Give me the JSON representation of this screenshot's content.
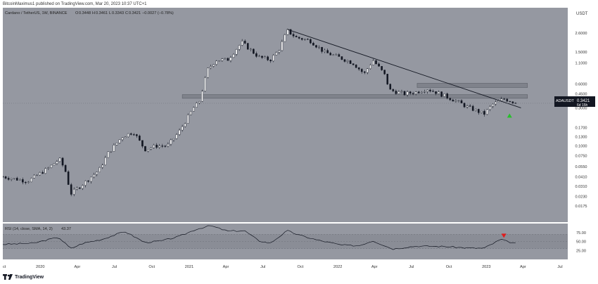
{
  "header": {
    "publisher": "BitcoinMaximus1 published on TradingView.com, Mar 20, 2023 10:37 UTC+1"
  },
  "legend": {
    "title": "Cardano / TetherUS, 1W, BINANCE",
    "o_label": "O",
    "o_value": "0.3448",
    "h_label": "H",
    "h_value": "0.3461",
    "l_label": "L",
    "l_value": "0.3343",
    "c_label": "C",
    "c_value": "0.3421",
    "change": "−0.0027 (−0.78%)"
  },
  "price_badge": {
    "symbol": "ADAUSDT",
    "price": "0.3421",
    "countdown": "6d 15h"
  },
  "rsi_legend": {
    "text": "RSI (14, close, SMA, 14, 2)",
    "value": "43.37"
  },
  "footer": {
    "brand": "TradingView"
  },
  "colors": {
    "plot_bg": "#9598a1",
    "candle_up": "#ffffff",
    "candle_down": "#131722",
    "trendline": "#131722",
    "zone_fill": "#7f828b",
    "up_arrow": "#26c02a",
    "down_arrow": "#e01c1c"
  },
  "chart_data": {
    "type": "candlestick",
    "symbol": "ADAUSDT",
    "timeframe": "1W",
    "yscale": "log",
    "ylabel": "USDT",
    "ylim": [
      0.011,
      4.0
    ],
    "yticks": [
      2.6,
      1.5,
      1.1,
      0.6,
      0.45,
      0.3,
      0.17,
      0.13,
      0.1,
      0.075,
      0.055,
      0.041,
      0.031,
      0.023,
      0.0175
    ],
    "ytick_labels": [
      "2.6000",
      "1.5000",
      "1.1000",
      "0.6000",
      "0.4500",
      "0.3000",
      "0.1700",
      "0.1300",
      "0.1000",
      "0.0750",
      "0.0550",
      "0.0410",
      "0.0310",
      "0.0230",
      "0.0175"
    ],
    "x_start": "2019-10-01",
    "x_end": "2023-07-20",
    "xticks": [
      "2019-10-01",
      "2020-01-01",
      "2020-04-01",
      "2020-07-01",
      "2020-10-01",
      "2021-01-01",
      "2021-04-01",
      "2021-07-01",
      "2021-10-01",
      "2022-01-01",
      "2022-04-01",
      "2022-07-01",
      "2022-10-01",
      "2023-01-01",
      "2023-04-01",
      "2023-07-01"
    ],
    "xtick_labels": [
      "Oct",
      "2020",
      "Apr",
      "Jul",
      "Oct",
      "2021",
      "Apr",
      "Jul",
      "Oct",
      "2022",
      "Apr",
      "Jul",
      "Oct",
      "2023",
      "Apr",
      "Jul"
    ],
    "price_anchors": [
      [
        "2019-10-01",
        0.041
      ],
      [
        "2019-12-01",
        0.036
      ],
      [
        "2020-01-20",
        0.052
      ],
      [
        "2020-02-17",
        0.068
      ],
      [
        "2020-03-02",
        0.05
      ],
      [
        "2020-03-16",
        0.025
      ],
      [
        "2020-04-20",
        0.035
      ],
      [
        "2020-05-25",
        0.05
      ],
      [
        "2020-06-15",
        0.08
      ],
      [
        "2020-07-20",
        0.13
      ],
      [
        "2020-08-17",
        0.15
      ],
      [
        "2020-09-14",
        0.09
      ],
      [
        "2020-10-12",
        0.1
      ],
      [
        "2020-11-09",
        0.1
      ],
      [
        "2020-12-07",
        0.15
      ],
      [
        "2021-01-11",
        0.3
      ],
      [
        "2021-01-25",
        0.35
      ],
      [
        "2021-02-15",
        0.9
      ],
      [
        "2021-03-08",
        1.2
      ],
      [
        "2021-04-05",
        1.2
      ],
      [
        "2021-05-10",
        2.0
      ],
      [
        "2021-06-21",
        1.3
      ],
      [
        "2021-07-19",
        1.2
      ],
      [
        "2021-08-09",
        1.6
      ],
      [
        "2021-08-30",
        2.8
      ],
      [
        "2021-09-20",
        2.3
      ],
      [
        "2021-10-25",
        2.1
      ],
      [
        "2021-11-29",
        1.5
      ],
      [
        "2022-01-03",
        1.3
      ],
      [
        "2022-02-07",
        1.1
      ],
      [
        "2022-03-07",
        0.8
      ],
      [
        "2022-03-28",
        1.2
      ],
      [
        "2022-04-25",
        0.8
      ],
      [
        "2022-05-09",
        0.5
      ],
      [
        "2022-06-13",
        0.45
      ],
      [
        "2022-07-11",
        0.47
      ],
      [
        "2022-08-08",
        0.52
      ],
      [
        "2022-09-05",
        0.46
      ],
      [
        "2022-10-17",
        0.37
      ],
      [
        "2022-11-14",
        0.31
      ],
      [
        "2022-12-12",
        0.27
      ],
      [
        "2022-12-26",
        0.25
      ],
      [
        "2023-01-16",
        0.33
      ],
      [
        "2023-02-13",
        0.39
      ],
      [
        "2023-03-20",
        0.3421
      ]
    ],
    "trendline": {
      "from": [
        "2021-08-30",
        2.9
      ],
      "to": [
        "2023-03-27",
        0.3
      ]
    },
    "zones": [
      {
        "from": "2022-07-15",
        "to": "2023-04-12",
        "low": 0.54,
        "high": 0.61
      },
      {
        "from": "2020-12-15",
        "to": "2023-04-12",
        "low": 0.395,
        "high": 0.44
      }
    ],
    "up_arrow": {
      "date": "2023-02-27",
      "price": 0.24
    },
    "last_price": 0.3421,
    "rsi": {
      "label": "RSI (14, close, SMA, 14, 2)",
      "last": 43.37,
      "ylim": [
        0,
        100
      ],
      "yticks": [
        25,
        50,
        75
      ],
      "ytick_labels": [
        "25.00",
        "50.00",
        "75.00"
      ],
      "band": [
        30,
        70
      ],
      "anchors": [
        [
          "2019-10-01",
          42
        ],
        [
          "2019-12-15",
          45
        ],
        [
          "2020-02-15",
          62
        ],
        [
          "2020-03-16",
          30
        ],
        [
          "2020-04-15",
          45
        ],
        [
          "2020-06-01",
          56
        ],
        [
          "2020-07-27",
          78
        ],
        [
          "2020-09-14",
          47
        ],
        [
          "2020-10-26",
          52
        ],
        [
          "2020-12-07",
          64
        ],
        [
          "2021-01-18",
          84
        ],
        [
          "2021-02-22",
          94
        ],
        [
          "2021-04-05",
          79
        ],
        [
          "2021-05-17",
          80
        ],
        [
          "2021-06-21",
          52
        ],
        [
          "2021-07-19",
          45
        ],
        [
          "2021-08-30",
          80
        ],
        [
          "2021-09-27",
          68
        ],
        [
          "2021-11-08",
          55
        ],
        [
          "2022-01-10",
          40
        ],
        [
          "2022-02-21",
          38
        ],
        [
          "2022-03-28",
          52
        ],
        [
          "2022-05-16",
          29
        ],
        [
          "2022-07-11",
          37
        ],
        [
          "2022-09-19",
          36
        ],
        [
          "2022-11-14",
          32
        ],
        [
          "2022-12-26",
          31
        ],
        [
          "2023-02-06",
          56
        ],
        [
          "2023-02-20",
          50
        ],
        [
          "2023-03-20",
          43.37
        ]
      ],
      "down_arrow": {
        "date": "2023-02-13",
        "value": 66
      }
    }
  }
}
